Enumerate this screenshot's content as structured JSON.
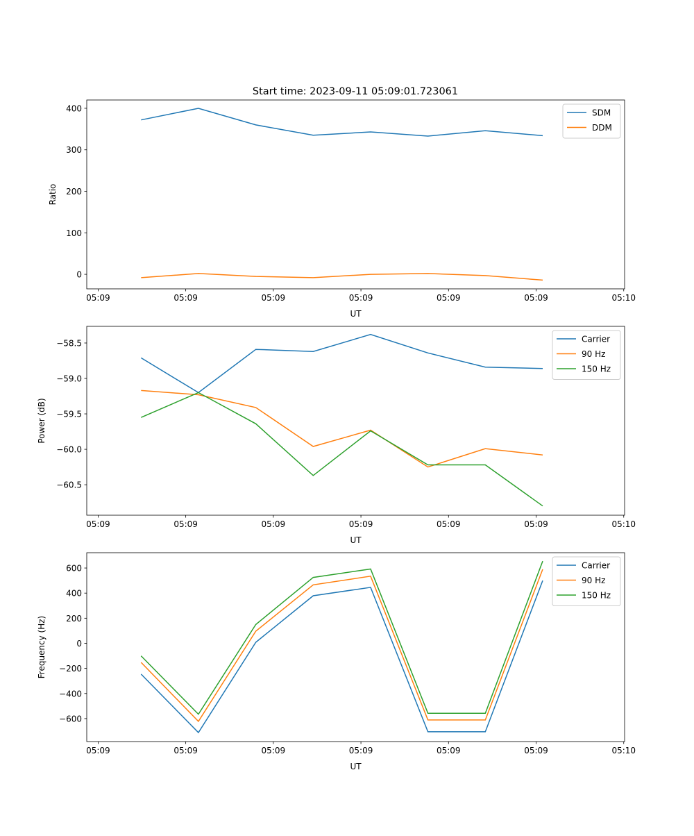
{
  "title": "Start time: 2023-09-11 05:09:01.723061",
  "colors": {
    "blue": "#1f77b4",
    "orange": "#ff7f0e",
    "green": "#2ca02c"
  },
  "chart_data": [
    {
      "type": "line",
      "title": "Start time: 2023-09-11 05:09:01.723061",
      "xlabel": "UT",
      "ylabel": "Ratio",
      "x": [
        4.9,
        11.45,
        18.0,
        24.55,
        31.1,
        37.65,
        44.2,
        50.75
      ],
      "xlim": [
        -1.3,
        60.1
      ],
      "xticks": [
        0,
        10,
        20,
        30,
        40,
        50,
        60
      ],
      "xtick_labels": [
        "05:09",
        "05:09",
        "05:09",
        "05:09",
        "05:09",
        "05:09",
        "05:10"
      ],
      "ylim": [
        -35,
        420
      ],
      "yticks": [
        0,
        100,
        200,
        300,
        400
      ],
      "ytick_labels": [
        "0",
        "100",
        "200",
        "300",
        "400"
      ],
      "legend_position": "top-right",
      "series": [
        {
          "name": "SDM",
          "color": "#1f77b4",
          "values": [
            372,
            400,
            360,
            335,
            343,
            333,
            346,
            334
          ]
        },
        {
          "name": "DDM",
          "color": "#ff7f0e",
          "values": [
            -8,
            2,
            -5,
            -8,
            0,
            2,
            -3,
            -14
          ]
        }
      ]
    },
    {
      "type": "line",
      "xlabel": "UT",
      "ylabel": "Power (dB)",
      "x": [
        4.9,
        11.45,
        18.0,
        24.55,
        31.1,
        37.65,
        44.2,
        50.75
      ],
      "xlim": [
        -1.3,
        60.1
      ],
      "xticks": [
        0,
        10,
        20,
        30,
        40,
        50,
        60
      ],
      "xtick_labels": [
        "05:09",
        "05:09",
        "05:09",
        "05:09",
        "05:09",
        "05:09",
        "05:10"
      ],
      "ylim": [
        -60.93,
        -58.265
      ],
      "yticks": [
        -58.5,
        -59.0,
        -59.5,
        -60.0,
        -60.5
      ],
      "ytick_labels": [
        "−58.5",
        "−59.0",
        "−59.5",
        "−60.0",
        "−60.5"
      ],
      "legend_position": "top-right",
      "series": [
        {
          "name": "Carrier",
          "color": "#1f77b4",
          "values": [
            -58.71,
            -59.2,
            -58.59,
            -58.62,
            -58.38,
            -58.64,
            -58.84,
            -58.86
          ]
        },
        {
          "name": "90 Hz",
          "color": "#ff7f0e",
          "values": [
            -59.17,
            -59.23,
            -59.41,
            -59.96,
            -59.73,
            -60.25,
            -59.99,
            -60.08
          ]
        },
        {
          "name": "150 Hz",
          "color": "#2ca02c",
          "values": [
            -59.55,
            -59.2,
            -59.64,
            -60.37,
            -59.74,
            -60.22,
            -60.22,
            -60.8
          ]
        }
      ]
    },
    {
      "type": "line",
      "xlabel": "UT",
      "ylabel": "Frequency (Hz)",
      "x": [
        4.9,
        11.45,
        18.0,
        24.55,
        31.1,
        37.65,
        44.2,
        50.75
      ],
      "xlim": [
        -1.3,
        60.1
      ],
      "xticks": [
        0,
        10,
        20,
        30,
        40,
        50,
        60
      ],
      "xtick_labels": [
        "05:09",
        "05:09",
        "05:09",
        "05:09",
        "05:09",
        "05:09",
        "05:10"
      ],
      "ylim": [
        -783,
        722
      ],
      "yticks": [
        600,
        400,
        200,
        0,
        -200,
        -400,
        -600
      ],
      "ytick_labels": [
        "600",
        "400",
        "200",
        "0",
        "−200",
        "−400",
        "−600"
      ],
      "legend_position": "top-right",
      "series": [
        {
          "name": "Carrier",
          "color": "#1f77b4",
          "values": [
            -246,
            -711,
            8,
            379,
            446,
            -705,
            -705,
            500
          ]
        },
        {
          "name": "90 Hz",
          "color": "#ff7f0e",
          "values": [
            -152,
            -622,
            97,
            466,
            535,
            -611,
            -611,
            590
          ]
        },
        {
          "name": "150 Hz",
          "color": "#2ca02c",
          "values": [
            -100,
            -565,
            150,
            525,
            592,
            -558,
            -558,
            655
          ]
        }
      ]
    }
  ]
}
